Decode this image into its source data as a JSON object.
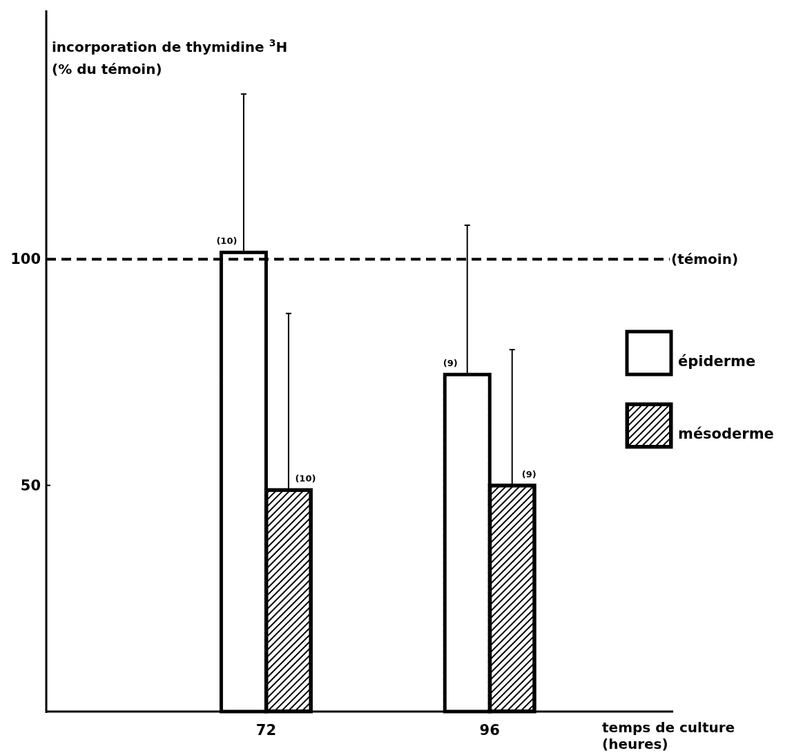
{
  "chart_data": {
    "type": "bar",
    "ylabel": "incorporation de thymidine $^{3}$H\n(% du témoin)",
    "xlabel": "temps de culture\n(heures)",
    "x": [
      72,
      96
    ],
    "xlim": [
      48.4,
      115.7
    ],
    "xticks": [
      72,
      96
    ],
    "ylim": [
      0,
      155
    ],
    "yticks": [
      50,
      100
    ],
    "grid": false,
    "legend": "right",
    "series": [
      {
        "name": "épiderme",
        "color": "#ffffff",
        "values": [
          101.5,
          74.5
        ],
        "errors": [
          [
            101.5,
            136.5
          ],
          [
            74.5,
            107.5
          ]
        ]
      },
      {
        "name": "mésoderme",
        "color": "#000000",
        "values": [
          49,
          50
        ],
        "errors": [
          [
            49,
            88
          ],
          [
            50,
            80
          ]
        ]
      }
    ],
    "ref_lines": [
      {
        "axis": "y",
        "value": 100,
        "label": "(témoin)",
        "line_style": "dashed"
      }
    ],
    "annotations": [
      "(10)",
      "(10)",
      "(9)",
      "(9)"
    ]
  }
}
